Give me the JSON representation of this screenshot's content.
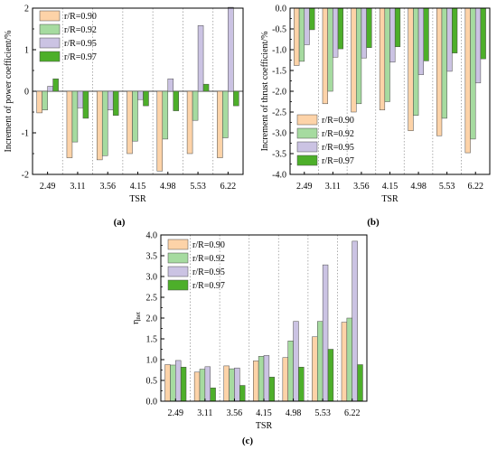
{
  "chart_data": [
    {
      "panel_label": "(a)",
      "type": "bar",
      "categories": [
        "2.49",
        "3.11",
        "3.56",
        "4.15",
        "4.98",
        "5.53",
        "6.22"
      ],
      "xlabel": "TSR",
      "ylabel": "Increment of power coefficient/%",
      "ylim": [
        -2,
        2
      ],
      "yticks": [
        "-2",
        "-1",
        "0",
        "1",
        "2"
      ],
      "grid": "vertical dotted separators",
      "legend_placement": "top-left",
      "series": [
        {
          "name": "r/R=0.90",
          "color": "#fdd3a8",
          "values": [
            -0.52,
            -1.6,
            -1.65,
            -1.5,
            -1.92,
            -1.5,
            -1.6
          ]
        },
        {
          "name": "r/R=0.92",
          "color": "#a6dba0",
          "values": [
            -0.45,
            -1.22,
            -1.55,
            -1.2,
            -1.15,
            -0.7,
            -1.12
          ]
        },
        {
          "name": "r/R=0.95",
          "color": "#cbc3e3",
          "values": [
            0.12,
            -0.4,
            -0.45,
            -0.2,
            0.3,
            1.58,
            2.02
          ]
        },
        {
          "name": "r/R=0.97",
          "color": "#4daf2a",
          "values": [
            0.3,
            -0.65,
            -0.58,
            -0.35,
            -0.47,
            0.17,
            -0.35
          ]
        }
      ]
    },
    {
      "panel_label": "(b)",
      "type": "bar",
      "categories": [
        "2.49",
        "3.11",
        "3.56",
        "4.15",
        "4.98",
        "5.53",
        "6.22"
      ],
      "xlabel": "TSR",
      "ylabel": "Increment of thrust coefficient/%",
      "ylim": [
        -4.0,
        0.0
      ],
      "yticks": [
        "-4.0",
        "-3.5",
        "-3.0",
        "-2.5",
        "-2.0",
        "-1.5",
        "-1.0",
        "-0.5",
        "0.0"
      ],
      "grid": "vertical dotted separators",
      "legend_placement": "bottom-left",
      "series": [
        {
          "name": "r/R=0.90",
          "color": "#fdd3a8",
          "values": [
            -1.38,
            -2.3,
            -2.5,
            -2.45,
            -2.95,
            -3.07,
            -3.48
          ]
        },
        {
          "name": "r/R=0.92",
          "color": "#a6dba0",
          "values": [
            -1.28,
            -2.0,
            -2.3,
            -2.25,
            -2.58,
            -2.65,
            -3.15
          ]
        },
        {
          "name": "r/R=0.95",
          "color": "#cbc3e3",
          "values": [
            -0.88,
            -1.18,
            -1.2,
            -1.3,
            -1.6,
            -1.52,
            -1.8
          ]
        },
        {
          "name": "r/R=0.97",
          "color": "#4daf2a",
          "values": [
            -0.52,
            -0.98,
            -0.95,
            -0.93,
            -1.27,
            -1.08,
            -1.22
          ]
        }
      ]
    },
    {
      "panel_label": "(c)",
      "type": "bar",
      "categories": [
        "2.49",
        "3.11",
        "3.56",
        "4.15",
        "4.98",
        "5.53",
        "6.22"
      ],
      "xlabel": "TSR",
      "ylabel": "η",
      "ylabel_sub": "net",
      "ylim": [
        0.0,
        4.0
      ],
      "yticks": [
        "0.0",
        "0.5",
        "1.0",
        "1.5",
        "2.0",
        "2.5",
        "3.0",
        "3.5",
        "4.0"
      ],
      "grid": "vertical dotted separators",
      "legend_placement": "top-left",
      "series": [
        {
          "name": "r/R=0.90",
          "color": "#fdd3a8",
          "values": [
            0.88,
            0.7,
            0.85,
            0.97,
            1.05,
            1.55,
            1.9
          ]
        },
        {
          "name": "r/R=0.92",
          "color": "#a6dba0",
          "values": [
            0.87,
            0.77,
            0.78,
            1.08,
            1.45,
            1.92,
            2.0
          ]
        },
        {
          "name": "r/R=0.95",
          "color": "#cbc3e3",
          "values": [
            0.98,
            0.83,
            0.8,
            1.1,
            1.92,
            3.28,
            3.85
          ]
        },
        {
          "name": "r/R=0.97",
          "color": "#4daf2a",
          "values": [
            0.82,
            0.32,
            0.38,
            0.58,
            0.82,
            1.25,
            0.88
          ]
        }
      ]
    }
  ]
}
